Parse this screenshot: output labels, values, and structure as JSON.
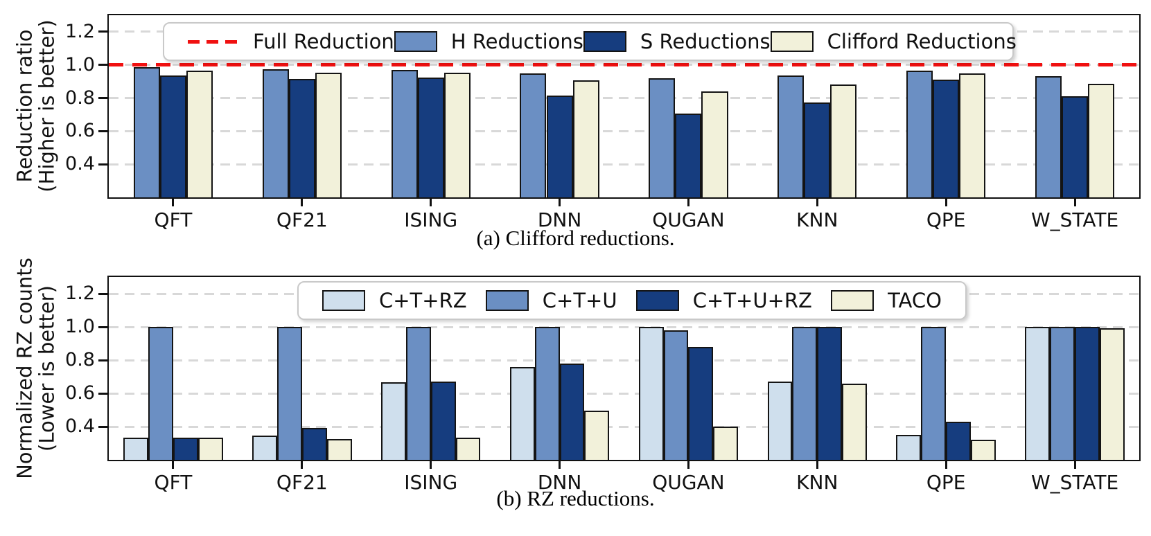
{
  "figure": {
    "background": "#ffffff",
    "grid_color": "#d8d8d8",
    "spine_color": "#111111"
  },
  "chart_data": [
    {
      "type": "bar",
      "caption": "(a) Clifford reductions.",
      "ylabel_lines": [
        "Reduction ratio",
        "(Higher is better)"
      ],
      "categories": [
        "QFT",
        "QF21",
        "ISING",
        "DNN",
        "QUGAN",
        "KNN",
        "QPE",
        "W_STATE"
      ],
      "ylim": [
        0.2,
        1.3
      ],
      "yticks": [
        0.4,
        0.6,
        0.8,
        1.0,
        1.2
      ],
      "ytick_labels": [
        "0.4",
        "0.6",
        "0.8",
        "1.0",
        "1.2"
      ],
      "grid": "dashed",
      "legend_position": "upper-center-inside",
      "reference_line": {
        "label": "Full Reduction",
        "value": 1.0,
        "color": "#f01010",
        "style": "dashed"
      },
      "series": [
        {
          "name": "H Reductions",
          "color": "#6b8fc3",
          "values": [
            0.985,
            0.975,
            0.97,
            0.95,
            0.92,
            0.935,
            0.965,
            0.93
          ]
        },
        {
          "name": "S Reductions",
          "color": "#163d7f",
          "values": [
            0.935,
            0.915,
            0.925,
            0.815,
            0.705,
            0.775,
            0.91,
            0.81
          ]
        },
        {
          "name": "Clifford Reductions",
          "color": "#f2f1da",
          "values": [
            0.965,
            0.955,
            0.955,
            0.905,
            0.84,
            0.88,
            0.95,
            0.885
          ]
        }
      ]
    },
    {
      "type": "bar",
      "caption": "(b) RZ reductions.",
      "ylabel_lines": [
        "Normalized RZ counts",
        "(Lower is better)"
      ],
      "categories": [
        "QFT",
        "QF21",
        "ISING",
        "DNN",
        "QUGAN",
        "KNN",
        "QPE",
        "W_STATE"
      ],
      "ylim": [
        0.2,
        1.3
      ],
      "yticks": [
        0.4,
        0.6,
        0.8,
        1.0,
        1.2
      ],
      "ytick_labels": [
        "0.4",
        "0.6",
        "0.8",
        "1.0",
        "1.2"
      ],
      "grid": "dashed",
      "legend_position": "upper-center-inside",
      "series": [
        {
          "name": "C+T+RZ",
          "color": "#cfdfed",
          "values": [
            0.335,
            0.345,
            0.665,
            0.76,
            1.0,
            0.67,
            0.35,
            1.0
          ]
        },
        {
          "name": "C+T+U",
          "color": "#6b8fc3",
          "values": [
            1.0,
            1.0,
            1.0,
            1.0,
            0.98,
            1.0,
            1.0,
            1.0
          ]
        },
        {
          "name": "C+T+U+RZ",
          "color": "#163d7f",
          "values": [
            0.335,
            0.39,
            0.67,
            0.78,
            0.88,
            1.0,
            0.43,
            1.0
          ]
        },
        {
          "name": "TACO",
          "color": "#f2f1da",
          "values": [
            0.335,
            0.325,
            0.335,
            0.495,
            0.4,
            0.66,
            0.32,
            0.99
          ]
        }
      ]
    }
  ]
}
